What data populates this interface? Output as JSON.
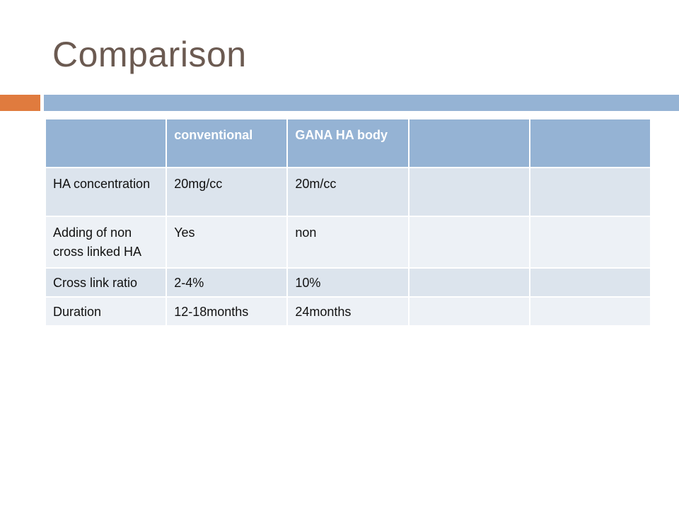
{
  "slide": {
    "title": "Comparison"
  },
  "table": {
    "headers": [
      "",
      "conventional",
      "GANA HA body",
      "",
      ""
    ],
    "rows": [
      [
        "HA concentration",
        "20mg/cc",
        "20m/cc",
        "",
        ""
      ],
      [
        "Adding of non cross linked HA",
        "Yes",
        "non",
        "",
        ""
      ],
      [
        "Cross link ratio",
        "2-4%",
        "10%",
        "",
        ""
      ],
      [
        "Duration",
        "12-18months",
        "24months",
        "",
        ""
      ]
    ]
  },
  "colors": {
    "title": "#6b5a51",
    "accent": "#e07b3e",
    "header": "#95b3d4",
    "row_odd": "#dce4ed",
    "row_even": "#edf1f6"
  }
}
